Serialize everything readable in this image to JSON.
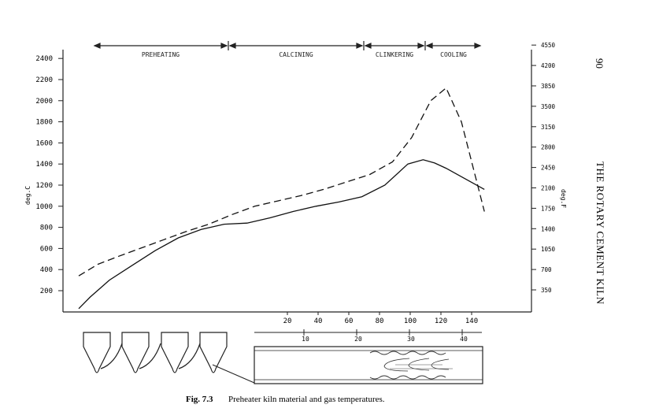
{
  "page": {
    "page_number": "90",
    "running_head": "THE ROTARY CEMENT KILN",
    "caption_label": "Fig. 7.3",
    "caption_text": "Preheater kiln material and gas temperatures."
  },
  "chart_data": {
    "type": "line",
    "title": "",
    "ylabel": "deg.C",
    "ylabel_right": "deg.F",
    "ylim": [
      0,
      2450
    ],
    "yticks": [
      200,
      400,
      600,
      800,
      1000,
      1200,
      1400,
      1600,
      1800,
      2000,
      2200,
      2400
    ],
    "yticks_right": [
      "350",
      "700",
      "1050",
      "1400",
      "1750",
      "2100",
      "2450",
      "2800",
      "3150",
      "3500",
      "3850",
      "4200",
      "4550"
    ],
    "xticks_top": [
      "20",
      "40",
      "60",
      "80",
      "100",
      "120",
      "140"
    ],
    "xticks_bottom": [
      "10",
      "20",
      "30",
      "40"
    ],
    "zones": [
      "PREHEATING",
      "CALCINING",
      "CLINKERING",
      "COOLING"
    ],
    "series": [
      {
        "style": "dashed",
        "x": [
          0,
          5,
          10,
          16,
          22,
          28,
          34,
          40,
          46,
          52,
          58,
          64,
          70,
          76,
          82,
          87,
          92,
          96,
          100,
          106
        ],
        "y": [
          340,
          450,
          520,
          600,
          680,
          760,
          830,
          920,
          1000,
          1050,
          1100,
          1160,
          1230,
          1300,
          1420,
          1650,
          2000,
          2120,
          1800,
          950
        ]
      },
      {
        "style": "solid",
        "x": [
          0,
          3,
          8,
          14,
          20,
          26,
          32,
          38,
          44,
          50,
          56,
          62,
          68,
          74,
          80,
          86,
          90,
          93,
          96,
          100,
          106
        ],
        "y": [
          30,
          140,
          300,
          440,
          580,
          700,
          780,
          830,
          840,
          890,
          950,
          1000,
          1040,
          1090,
          1200,
          1400,
          1440,
          1410,
          1360,
          1280,
          1160
        ]
      }
    ]
  }
}
